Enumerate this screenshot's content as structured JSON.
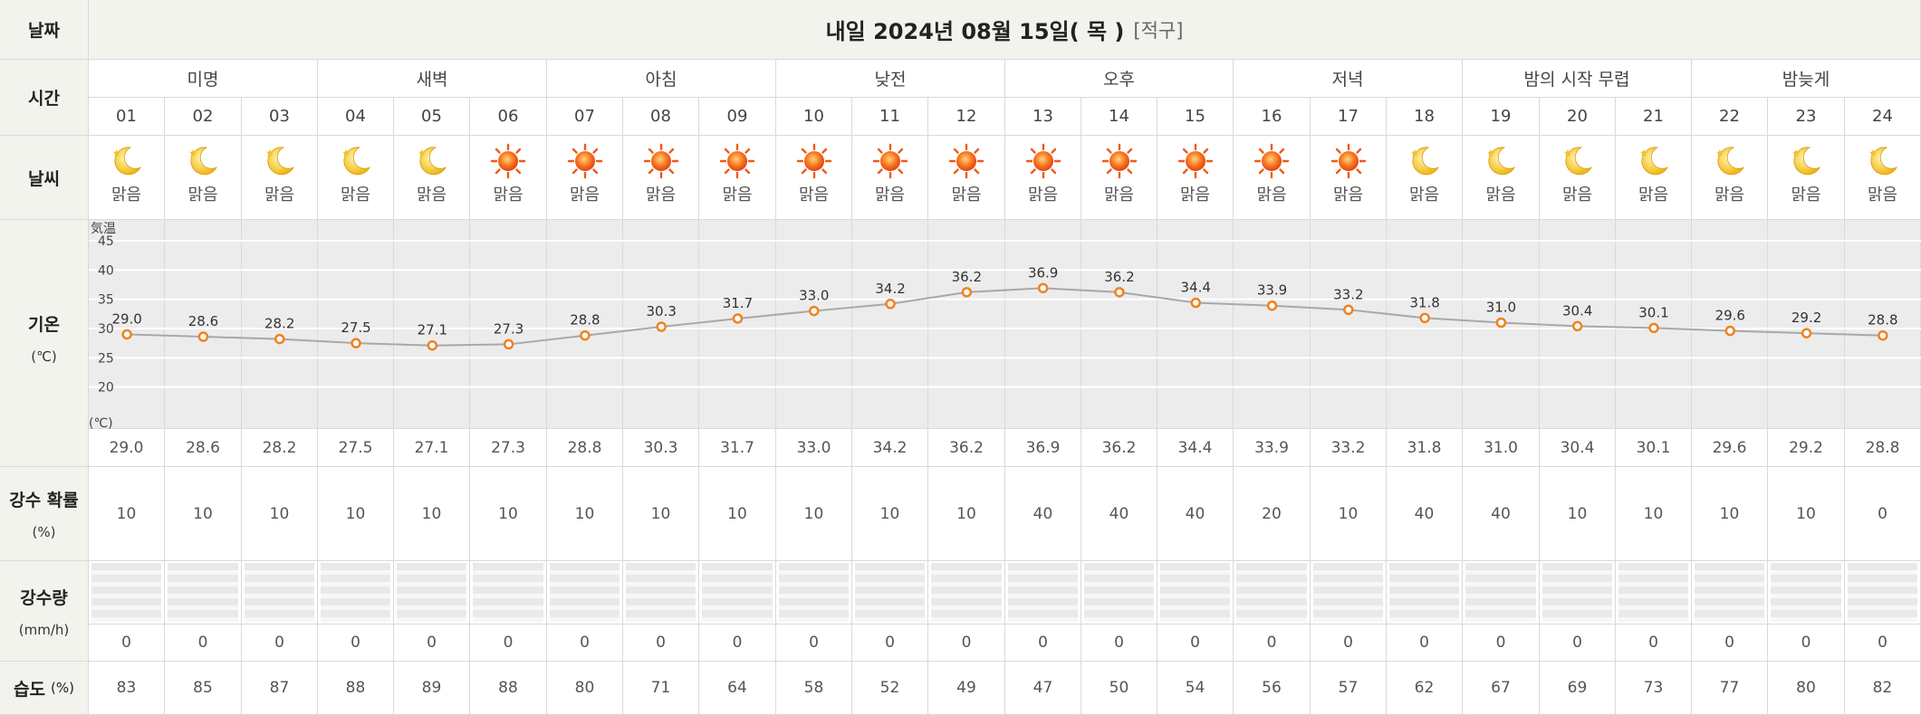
{
  "header": {
    "date_label": "날짜",
    "title": "내일 2024년 08월 15일( 목 )",
    "location": "[적구]"
  },
  "labels": {
    "time": "시간",
    "weather": "날씨",
    "temp": "기온",
    "temp_unit": "(℃)",
    "pop": "강수 확률",
    "pop_unit": "(%)",
    "precip": "강수량",
    "precip_unit": "(mm/h)",
    "humidity": "습도",
    "humidity_unit": "(%)"
  },
  "time_slots": [
    "미명",
    "새벽",
    "아침",
    "낮전",
    "오후",
    "저녁",
    "밤의 시작 무렵",
    "밤늦게"
  ],
  "hours": [
    "01",
    "02",
    "03",
    "04",
    "05",
    "06",
    "07",
    "08",
    "09",
    "10",
    "11",
    "12",
    "13",
    "14",
    "15",
    "16",
    "17",
    "18",
    "19",
    "20",
    "21",
    "22",
    "23",
    "24"
  ],
  "weather": [
    {
      "icon": "moon-icon",
      "label": "맑음"
    },
    {
      "icon": "moon-icon",
      "label": "맑음"
    },
    {
      "icon": "moon-icon",
      "label": "맑음"
    },
    {
      "icon": "moon-icon",
      "label": "맑음"
    },
    {
      "icon": "moon-icon",
      "label": "맑음"
    },
    {
      "icon": "sun-icon",
      "label": "맑음"
    },
    {
      "icon": "sun-icon",
      "label": "맑음"
    },
    {
      "icon": "sun-icon",
      "label": "맑음"
    },
    {
      "icon": "sun-icon",
      "label": "맑음"
    },
    {
      "icon": "sun-icon",
      "label": "맑음"
    },
    {
      "icon": "sun-icon",
      "label": "맑음"
    },
    {
      "icon": "sun-icon",
      "label": "맑음"
    },
    {
      "icon": "sun-icon",
      "label": "맑음"
    },
    {
      "icon": "sun-icon",
      "label": "맑음"
    },
    {
      "icon": "sun-icon",
      "label": "맑음"
    },
    {
      "icon": "sun-icon",
      "label": "맑음"
    },
    {
      "icon": "sun-icon",
      "label": "맑음"
    },
    {
      "icon": "moon-icon",
      "label": "맑음"
    },
    {
      "icon": "moon-icon",
      "label": "맑음"
    },
    {
      "icon": "moon-icon",
      "label": "맑음"
    },
    {
      "icon": "moon-icon",
      "label": "맑음"
    },
    {
      "icon": "moon-icon",
      "label": "맑음"
    },
    {
      "icon": "moon-icon",
      "label": "맑음"
    },
    {
      "icon": "moon-icon",
      "label": "맑음"
    }
  ],
  "temps_text": [
    "29.0",
    "28.6",
    "28.2",
    "27.5",
    "27.1",
    "27.3",
    "28.8",
    "30.3",
    "31.7",
    "33.0",
    "34.2",
    "36.2",
    "36.9",
    "36.2",
    "34.4",
    "33.9",
    "33.2",
    "31.8",
    "31.0",
    "30.4",
    "30.1",
    "29.6",
    "29.2",
    "28.8"
  ],
  "pop": [
    "10",
    "10",
    "10",
    "10",
    "10",
    "10",
    "10",
    "10",
    "10",
    "10",
    "10",
    "10",
    "40",
    "40",
    "40",
    "20",
    "10",
    "40",
    "40",
    "10",
    "10",
    "10",
    "10",
    "0"
  ],
  "precip": [
    "0",
    "0",
    "0",
    "0",
    "0",
    "0",
    "0",
    "0",
    "0",
    "0",
    "0",
    "0",
    "0",
    "0",
    "0",
    "0",
    "0",
    "0",
    "0",
    "0",
    "0",
    "0",
    "0",
    "0"
  ],
  "humidity": [
    "83",
    "85",
    "87",
    "88",
    "89",
    "88",
    "80",
    "71",
    "64",
    "58",
    "52",
    "49",
    "47",
    "50",
    "54",
    "56",
    "57",
    "62",
    "67",
    "69",
    "73",
    "77",
    "80",
    "82"
  ],
  "chart_data": {
    "type": "line",
    "title": "",
    "ylabel_top": "気温",
    "ylabel_bottom": "(℃)",
    "ylim": [
      15,
      47
    ],
    "yticks": [
      20,
      25,
      30,
      35,
      40,
      45
    ],
    "x": [
      "01",
      "02",
      "03",
      "04",
      "05",
      "06",
      "07",
      "08",
      "09",
      "10",
      "11",
      "12",
      "13",
      "14",
      "15",
      "16",
      "17",
      "18",
      "19",
      "20",
      "21",
      "22",
      "23",
      "24"
    ],
    "series": [
      {
        "values": [
          29.0,
          28.6,
          28.2,
          27.5,
          27.1,
          27.3,
          28.8,
          30.3,
          31.7,
          33.0,
          34.2,
          36.2,
          36.9,
          36.2,
          34.4,
          33.9,
          33.2,
          31.8,
          31.0,
          30.4,
          30.1,
          29.6,
          29.2,
          28.8
        ]
      }
    ],
    "line_color": "#a8a8a8",
    "marker_color": "#f0821e",
    "grid": true
  },
  "colors": {
    "header_bg": "#f3f3ee",
    "chart_bg": "#ececec",
    "rain_bg": "#e8e8e8",
    "border": "#d9d9d9"
  }
}
